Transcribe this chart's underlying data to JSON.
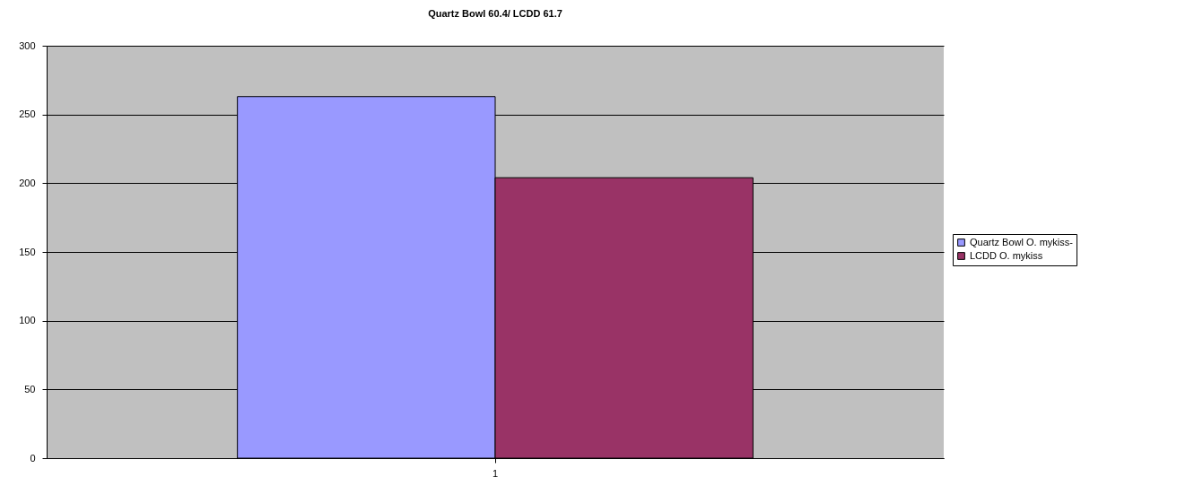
{
  "chart_data": {
    "type": "bar",
    "title": "Quartz Bowl 60.4/ LCDD 61.7",
    "categories": [
      "1"
    ],
    "series": [
      {
        "name": "Quartz Bowl O. mykiss-",
        "color": "#9999ff",
        "values": [
          263
        ]
      },
      {
        "name": "LCDD O. mykiss",
        "color": "#993366",
        "values": [
          204
        ]
      }
    ],
    "ylim": [
      0,
      300
    ],
    "yticks": [
      0,
      50,
      100,
      150,
      200,
      250,
      300
    ],
    "grid": "y",
    "legend": "right"
  }
}
